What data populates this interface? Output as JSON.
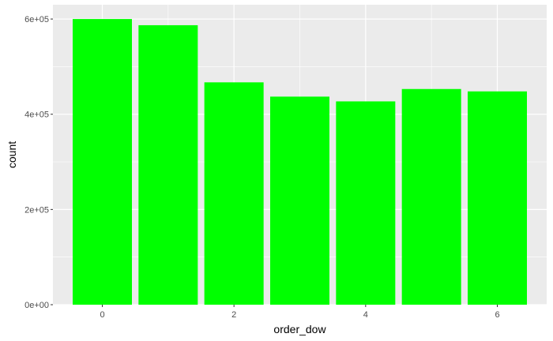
{
  "chart_data": {
    "type": "bar",
    "categories": [
      0,
      1,
      2,
      3,
      4,
      5,
      6
    ],
    "values": [
      600000,
      587000,
      467000,
      437000,
      427000,
      453000,
      448000
    ],
    "xlabel": "order_dow",
    "ylabel": "count",
    "ylim": [
      0,
      630000
    ],
    "xlim": [
      -0.75,
      6.75
    ],
    "x_ticks": [
      0,
      2,
      4,
      6
    ],
    "x_tick_labels": [
      "0",
      "2",
      "4",
      "6"
    ],
    "y_ticks": [
      0,
      200000,
      400000,
      600000
    ],
    "y_tick_labels": [
      "0e+00",
      "2e+05",
      "4e+05",
      "6e+05"
    ],
    "grid": true,
    "legend": "none",
    "bar_color": "#00ff00",
    "panel_color": "#ebebeb",
    "grid_color": "#ffffff"
  }
}
